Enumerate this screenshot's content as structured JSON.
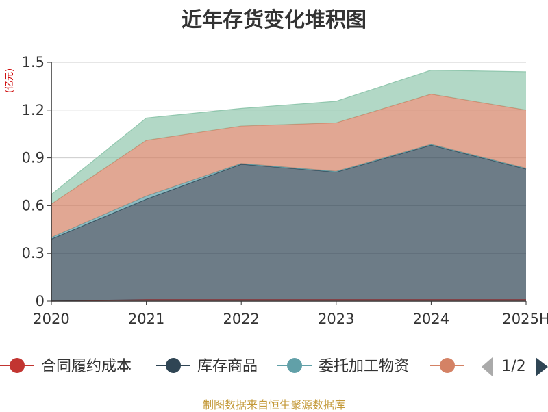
{
  "chart_data": {
    "type": "area",
    "stacked": true,
    "title": "近年存货变化堆积图",
    "y_unit": "(亿元)",
    "categories": [
      "2020",
      "2021",
      "2022",
      "2023",
      "2024",
      "2025H"
    ],
    "ylim": [
      0,
      1.5
    ],
    "yticks": [
      "0",
      "0.3",
      "0.6",
      "0.9",
      "1.2",
      "1.5"
    ],
    "grid": true,
    "series": [
      {
        "name": "合同履约成本",
        "color": "#c23531",
        "values": [
          0.0,
          0.01,
          0.01,
          0.01,
          0.01,
          0.01
        ]
      },
      {
        "name": "库存商品",
        "color": "#2f4554",
        "values": [
          0.39,
          0.63,
          0.85,
          0.8,
          0.97,
          0.82
        ]
      },
      {
        "name": "委托加工物资",
        "color": "#61a0a8",
        "values": [
          0.01,
          0.02,
          0.005,
          0.005,
          0.005,
          0.005
        ]
      },
      {
        "name": "",
        "color": "#d48265",
        "values": [
          0.21,
          0.35,
          0.235,
          0.305,
          0.315,
          0.365
        ]
      },
      {
        "name": "",
        "color": "#91c7ae",
        "values": [
          0.06,
          0.14,
          0.11,
          0.135,
          0.15,
          0.24
        ]
      }
    ],
    "legend": {
      "position": "bottom",
      "page": "1/2"
    }
  },
  "source_note": "制图数据来自恒生聚源数据库"
}
